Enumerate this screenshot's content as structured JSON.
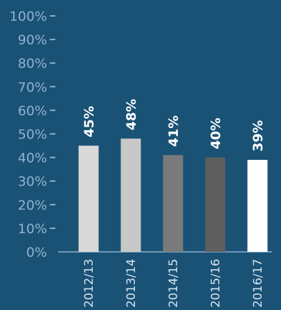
{
  "chart_data": {
    "type": "bar",
    "title": "",
    "xlabel": "",
    "ylabel": "",
    "ylim": [
      0,
      100
    ],
    "y_ticks": [
      0,
      10,
      20,
      30,
      40,
      50,
      60,
      70,
      80,
      90,
      100
    ],
    "y_tick_labels": [
      "0%",
      "10%",
      "20%",
      "30%",
      "40%",
      "50%",
      "60%",
      "70%",
      "80%",
      "90%",
      "100%"
    ],
    "categories": [
      "2012/13",
      "2013/14",
      "2014/15",
      "2015/16",
      "2016/17"
    ],
    "values": [
      45,
      48,
      41,
      40,
      39
    ],
    "data_labels": [
      "45%",
      "48%",
      "41%",
      "40%",
      "39%"
    ],
    "bar_colors": [
      "#d9d9d9",
      "#c8c8c8",
      "#7a7a7a",
      "#5e5e5e",
      "#ffffff"
    ],
    "background_color": "#1a5276",
    "axis_color": "#8fb3cc",
    "grid": false,
    "legend": "none"
  }
}
